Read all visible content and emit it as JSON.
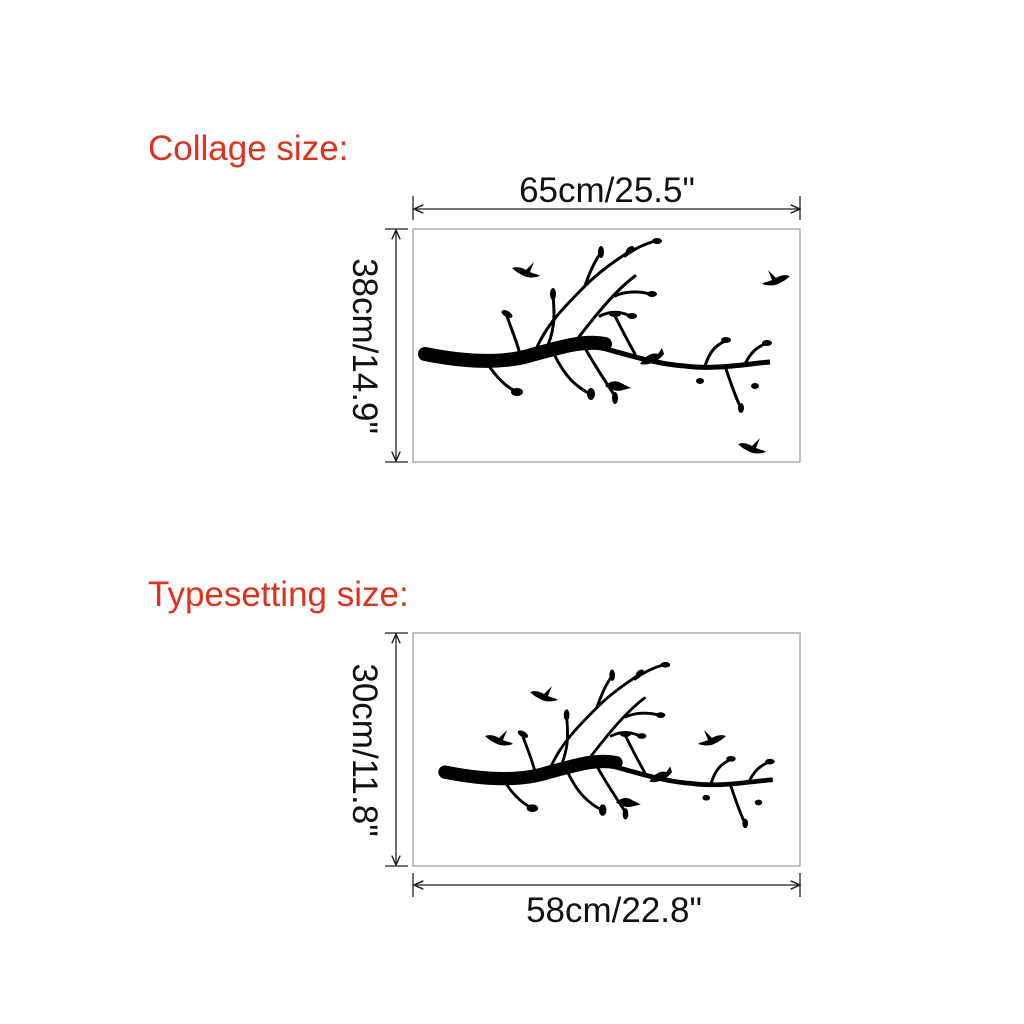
{
  "sections": [
    {
      "title": "Collage size:",
      "width_label": "65cm/25.5\"",
      "height_label": "38cm/14.9\""
    },
    {
      "title": "Typesetting size:",
      "width_label": "58cm/22.8\"",
      "height_label": "30cm/11.8\""
    }
  ]
}
